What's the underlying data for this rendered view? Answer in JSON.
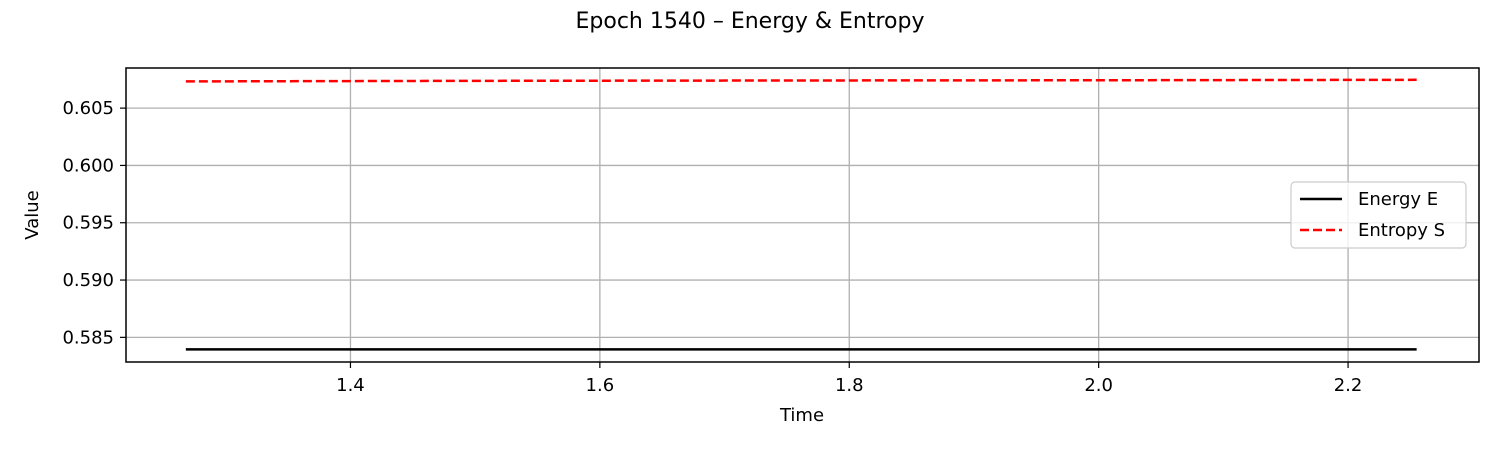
{
  "chart_data": {
    "type": "line",
    "title": "Epoch 1540 – Energy & Entropy",
    "xlabel": "Time",
    "ylabel": "Value",
    "xlim": [
      1.22,
      2.305
    ],
    "ylim": [
      0.58285,
      0.6085
    ],
    "xticks": [
      1.4,
      1.6,
      1.8,
      2.0,
      2.2
    ],
    "xtick_labels": [
      "1.4",
      "1.6",
      "1.8",
      "2.0",
      "2.2"
    ],
    "yticks": [
      0.585,
      0.59,
      0.595,
      0.6,
      0.605
    ],
    "ytick_labels": [
      "0.585",
      "0.590",
      "0.595",
      "0.600",
      "0.605"
    ],
    "grid": true,
    "legend_position": "center-right",
    "series": [
      {
        "name": "Energy E",
        "color": "#000000",
        "style": "solid",
        "x": [
          1.268,
          1.5,
          1.75,
          2.0,
          2.255
        ],
        "y": [
          0.58395,
          0.58395,
          0.58395,
          0.58395,
          0.58395
        ]
      },
      {
        "name": "Entropy S",
        "color": "#ff0000",
        "style": "dashed",
        "x": [
          1.268,
          1.5,
          1.75,
          2.0,
          2.255
        ],
        "y": [
          0.60733,
          0.60738,
          0.60741,
          0.60743,
          0.60747
        ]
      }
    ]
  }
}
